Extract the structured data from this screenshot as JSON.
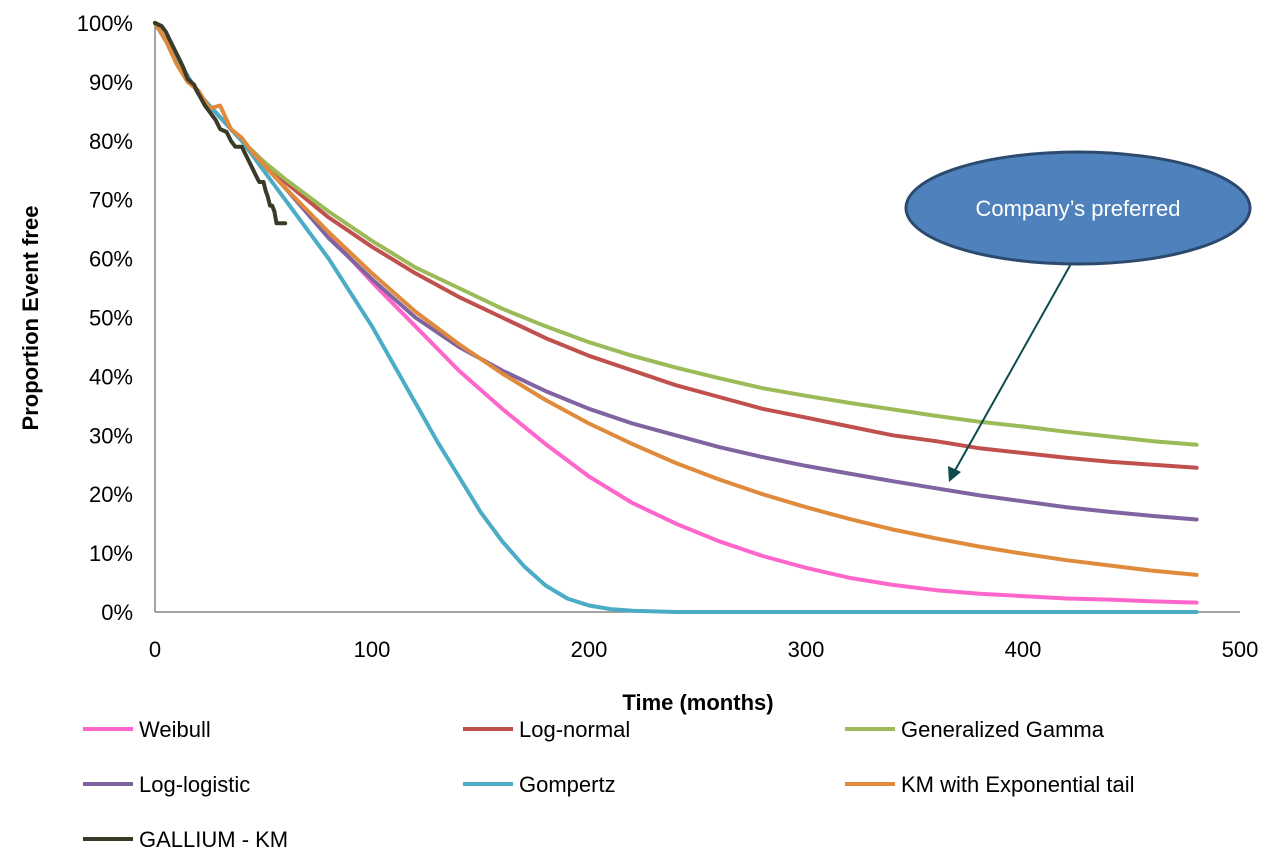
{
  "chart_data": {
    "type": "line",
    "title": "",
    "xlabel": "Time (months)",
    "ylabel": "Proportion Event free",
    "xlim": [
      0,
      500
    ],
    "ylim": [
      0,
      1
    ],
    "x_ticks": [
      0,
      100,
      200,
      300,
      400,
      500
    ],
    "x_tick_labels": [
      "0",
      "100",
      "200",
      "300",
      "400",
      "500"
    ],
    "y_ticks": [
      0,
      0.1,
      0.2,
      0.3,
      0.4,
      0.5,
      0.6,
      0.7,
      0.8,
      0.9,
      1.0
    ],
    "y_tick_labels": [
      "0%",
      "10%",
      "20%",
      "30%",
      "40%",
      "50%",
      "60%",
      "70%",
      "80%",
      "90%",
      "100%"
    ],
    "grid": false,
    "legend_position": "bottom",
    "annotation": {
      "text": "Company’s preferred",
      "points_to": {
        "x": 365,
        "y": 0.23
      },
      "fill_color": "#4F81BD",
      "arrow_color": "#0D4A4A"
    },
    "series": [
      {
        "name": "Weibull",
        "color": "#FF66CC",
        "x": [
          0,
          20,
          40,
          50,
          60,
          80,
          100,
          120,
          140,
          160,
          180,
          200,
          220,
          240,
          260,
          280,
          300,
          320,
          340,
          360,
          380,
          400,
          420,
          440,
          460,
          480
        ],
        "y": [
          1.0,
          0.88,
          0.8,
          0.76,
          0.72,
          0.64,
          0.56,
          0.485,
          0.41,
          0.345,
          0.285,
          0.23,
          0.185,
          0.15,
          0.12,
          0.095,
          0.075,
          0.058,
          0.046,
          0.037,
          0.031,
          0.027,
          0.023,
          0.021,
          0.018,
          0.016
        ]
      },
      {
        "name": "Log-normal",
        "color": "#C0504D",
        "x": [
          0,
          20,
          40,
          50,
          60,
          80,
          100,
          120,
          140,
          160,
          180,
          200,
          220,
          240,
          260,
          280,
          300,
          320,
          340,
          360,
          380,
          400,
          420,
          440,
          460,
          480
        ],
        "y": [
          1.0,
          0.88,
          0.8,
          0.765,
          0.73,
          0.67,
          0.62,
          0.575,
          0.535,
          0.5,
          0.465,
          0.435,
          0.41,
          0.385,
          0.365,
          0.345,
          0.33,
          0.315,
          0.3,
          0.29,
          0.278,
          0.27,
          0.262,
          0.255,
          0.25,
          0.245
        ]
      },
      {
        "name": "Generalized Gamma",
        "color": "#9BBB59",
        "x": [
          0,
          20,
          40,
          50,
          60,
          80,
          100,
          120,
          140,
          160,
          180,
          200,
          220,
          240,
          260,
          280,
          300,
          320,
          340,
          360,
          380,
          400,
          420,
          440,
          460,
          480
        ],
        "y": [
          1.0,
          0.88,
          0.8,
          0.765,
          0.735,
          0.68,
          0.63,
          0.585,
          0.55,
          0.515,
          0.485,
          0.458,
          0.435,
          0.415,
          0.397,
          0.38,
          0.367,
          0.355,
          0.344,
          0.333,
          0.323,
          0.315,
          0.306,
          0.298,
          0.29,
          0.284
        ]
      },
      {
        "name": "Log-logistic",
        "color": "#8064A2",
        "x": [
          0,
          20,
          40,
          50,
          60,
          80,
          100,
          120,
          140,
          160,
          180,
          200,
          220,
          240,
          260,
          280,
          300,
          320,
          340,
          360,
          380,
          400,
          420,
          440,
          460,
          480
        ],
        "y": [
          1.0,
          0.88,
          0.8,
          0.76,
          0.72,
          0.635,
          0.565,
          0.5,
          0.45,
          0.41,
          0.375,
          0.345,
          0.32,
          0.3,
          0.28,
          0.263,
          0.248,
          0.235,
          0.222,
          0.21,
          0.198,
          0.188,
          0.178,
          0.17,
          0.163,
          0.157
        ]
      },
      {
        "name": "Gompertz",
        "color": "#4BACC6",
        "x": [
          0,
          20,
          40,
          50,
          60,
          80,
          100,
          110,
          120,
          130,
          140,
          150,
          160,
          170,
          180,
          190,
          200,
          210,
          220,
          230,
          240,
          260,
          280,
          300,
          400,
          480
        ],
        "y": [
          1.0,
          0.88,
          0.8,
          0.75,
          0.7,
          0.6,
          0.485,
          0.42,
          0.355,
          0.29,
          0.23,
          0.17,
          0.12,
          0.078,
          0.045,
          0.023,
          0.011,
          0.005,
          0.002,
          0.001,
          0.0,
          0.0,
          0.0,
          0.0,
          0.0,
          0.0
        ]
      },
      {
        "name": "KM with Exponential tail",
        "color": "#E08A3C",
        "x": [
          0,
          5,
          10,
          15,
          20,
          25,
          30,
          35,
          40,
          45,
          50,
          60,
          80,
          100,
          120,
          140,
          160,
          180,
          200,
          220,
          240,
          260,
          280,
          300,
          320,
          340,
          360,
          380,
          400,
          420,
          440,
          460,
          480
        ],
        "y": [
          1.0,
          0.97,
          0.93,
          0.9,
          0.885,
          0.855,
          0.86,
          0.82,
          0.805,
          0.78,
          0.76,
          0.72,
          0.645,
          0.575,
          0.51,
          0.455,
          0.405,
          0.36,
          0.32,
          0.285,
          0.253,
          0.225,
          0.2,
          0.178,
          0.158,
          0.14,
          0.125,
          0.111,
          0.099,
          0.088,
          0.079,
          0.07,
          0.063
        ]
      },
      {
        "name": "GALLIUM - KM",
        "color": "#3B3B2A",
        "x": [
          0,
          3,
          5,
          7,
          9,
          11,
          13,
          15,
          18,
          20,
          23,
          25,
          28,
          30,
          33,
          35,
          37,
          40,
          42,
          44,
          46,
          48,
          50,
          51,
          52,
          53,
          54,
          55,
          56,
          58,
          60
        ],
        "y": [
          1.0,
          0.995,
          0.985,
          0.97,
          0.955,
          0.94,
          0.925,
          0.905,
          0.895,
          0.88,
          0.86,
          0.85,
          0.835,
          0.82,
          0.815,
          0.8,
          0.79,
          0.79,
          0.775,
          0.76,
          0.745,
          0.73,
          0.73,
          0.715,
          0.705,
          0.69,
          0.69,
          0.68,
          0.66,
          0.66,
          0.66
        ]
      }
    ]
  }
}
